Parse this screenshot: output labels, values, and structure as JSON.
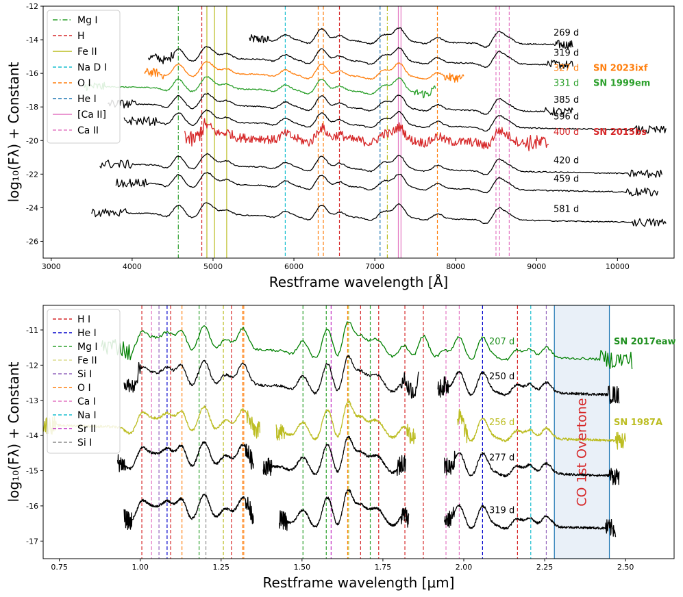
{
  "chart_data": [
    {
      "type": "line",
      "title": "",
      "xlabel": "Restframe wavelength [Å]",
      "ylabel": "log₁₀(Fλ) + Constant",
      "xlim": [
        2900,
        10700
      ],
      "ylim": [
        -27,
        -12
      ],
      "xticks": [
        3000,
        4000,
        5000,
        6000,
        7000,
        8000,
        9000,
        10000
      ],
      "yticks": [
        -26,
        -24,
        -22,
        -20,
        -18,
        -16,
        -14,
        -12
      ],
      "legend": {
        "position": "top-left",
        "entries": [
          {
            "label": "Mg I",
            "color": "#2ca02c",
            "style": "dashdot"
          },
          {
            "label": "H",
            "color": "#d62728",
            "style": "dashed"
          },
          {
            "label": "Fe II",
            "color": "#bcbd22",
            "style": "solid"
          },
          {
            "label": "Na D I",
            "color": "#17becf",
            "style": "dashed"
          },
          {
            "label": "O I",
            "color": "#ff7f0e",
            "style": "dashed"
          },
          {
            "label": "He I",
            "color": "#1f77b4",
            "style": "dashed"
          },
          {
            "label": "[Ca II]",
            "color": "#e377c2",
            "style": "solid"
          },
          {
            "label": "Ca II",
            "color": "#e377c2",
            "style": "dashed"
          }
        ]
      },
      "lines": [
        {
          "x": 4571,
          "color": "#2ca02c",
          "style": "dashdot"
        },
        {
          "x": 4861,
          "color": "#d62728",
          "style": "dashed"
        },
        {
          "x": 6563,
          "color": "#d62728",
          "style": "dashed"
        },
        {
          "x": 4924,
          "color": "#bcbd22",
          "style": "solid"
        },
        {
          "x": 5018,
          "color": "#bcbd22",
          "style": "solid"
        },
        {
          "x": 5169,
          "color": "#bcbd22",
          "style": "solid"
        },
        {
          "x": 7155,
          "color": "#bcbd22",
          "style": "dashdot"
        },
        {
          "x": 5893,
          "color": "#17becf",
          "style": "dashed"
        },
        {
          "x": 6300,
          "color": "#ff7f0e",
          "style": "dashed"
        },
        {
          "x": 6364,
          "color": "#ff7f0e",
          "style": "dashed"
        },
        {
          "x": 7774,
          "color": "#ff7f0e",
          "style": "dashed"
        },
        {
          "x": 7065,
          "color": "#1f77b4",
          "style": "dashed"
        },
        {
          "x": 7291,
          "color": "#e377c2",
          "style": "solid"
        },
        {
          "x": 7324,
          "color": "#e377c2",
          "style": "solid"
        },
        {
          "x": 8498,
          "color": "#e377c2",
          "style": "dashed"
        },
        {
          "x": 8542,
          "color": "#e377c2",
          "style": "dashed"
        },
        {
          "x": 8662,
          "color": "#e377c2",
          "style": "dashed"
        }
      ],
      "series": [
        {
          "epoch": "269 d",
          "name": "",
          "color": "#000000",
          "level": -14.0,
          "xstart": 5450,
          "xend": 9450
        },
        {
          "epoch": "319 d",
          "name": "",
          "color": "#000000",
          "level": -15.2,
          "xstart": 4200,
          "xend": 9450
        },
        {
          "epoch": "327 d",
          "name": "SN 2023ixf",
          "color": "#ff7f0e",
          "level": -16.1,
          "xstart": 4150,
          "xend": 8100
        },
        {
          "epoch": "331 d",
          "name": "SN 1999em",
          "color": "#2ca02c",
          "level": -17.0,
          "xstart": 3400,
          "xend": 7750
        },
        {
          "epoch": "385 d",
          "name": "",
          "color": "#000000",
          "level": -18.0,
          "xstart": 3700,
          "xend": 9450
        },
        {
          "epoch": "396 d",
          "name": "",
          "color": "#000000",
          "level": -19.0,
          "xstart": 3900,
          "xend": 10600
        },
        {
          "epoch": "400 d",
          "name": "SN 2015bs",
          "color": "#d62728",
          "level": -19.9,
          "xstart": 4650,
          "xend": 9150
        },
        {
          "epoch": "420 d",
          "name": "",
          "color": "#000000",
          "level": -21.6,
          "xstart": 3600,
          "xend": 10550
        },
        {
          "epoch": "459 d",
          "name": "",
          "color": "#000000",
          "level": -22.7,
          "xstart": 3800,
          "xend": 10500
        },
        {
          "epoch": "581 d",
          "name": "",
          "color": "#000000",
          "level": -24.5,
          "xstart": 3500,
          "xend": 10600
        }
      ]
    },
    {
      "type": "line",
      "title": "",
      "xlabel": "Restframe wavelength [μm]",
      "ylabel": "log₁₀(Fλ) + Constant",
      "xlim": [
        0.7,
        2.65
      ],
      "ylim": [
        -17.5,
        -10.3
      ],
      "xticks": [
        0.75,
        1.0,
        1.25,
        1.5,
        1.75,
        2.0,
        2.25,
        2.5
      ],
      "yticks": [
        -17,
        -16,
        -15,
        -14,
        -13,
        -12,
        -11
      ],
      "legend": {
        "position": "top-left",
        "entries": [
          {
            "label": "H I",
            "color": "#d62728",
            "style": "dashed"
          },
          {
            "label": "He I",
            "color": "#0000cc",
            "style": "dashed"
          },
          {
            "label": "Mg I",
            "color": "#2ca02c",
            "style": "dashed"
          },
          {
            "label": "Fe II",
            "color": "#dbdb8d",
            "style": "dashed"
          },
          {
            "label": "Si I",
            "color": "#9467bd",
            "style": "dashed"
          },
          {
            "label": "O I",
            "color": "#ff7f0e",
            "style": "dashed"
          },
          {
            "label": "Ca I",
            "color": "#e377c2",
            "style": "dashed"
          },
          {
            "label": "Na I",
            "color": "#17becf",
            "style": "dashed"
          },
          {
            "label": "Sr II",
            "color": "#c02cc0",
            "style": "dashed"
          },
          {
            "label": "Si I",
            "color": "#8c8c8c",
            "style": "dashed"
          }
        ]
      },
      "lines": [
        {
          "x": 1.005,
          "color": "#d62728"
        },
        {
          "x": 1.094,
          "color": "#d62728"
        },
        {
          "x": 1.282,
          "color": "#d62728"
        },
        {
          "x": 1.681,
          "color": "#d62728"
        },
        {
          "x": 1.737,
          "color": "#d62728"
        },
        {
          "x": 1.818,
          "color": "#d62728"
        },
        {
          "x": 1.875,
          "color": "#d62728"
        },
        {
          "x": 2.166,
          "color": "#d62728"
        },
        {
          "x": 1.083,
          "color": "#0000cc"
        },
        {
          "x": 2.058,
          "color": "#0000cc"
        },
        {
          "x": 1.182,
          "color": "#2ca02c"
        },
        {
          "x": 1.503,
          "color": "#2ca02c"
        },
        {
          "x": 1.575,
          "color": "#2ca02c"
        },
        {
          "x": 1.711,
          "color": "#2ca02c"
        },
        {
          "x": 1.257,
          "color": "#bcbd22"
        },
        {
          "x": 1.644,
          "color": "#bcbd22"
        },
        {
          "x": 1.058,
          "color": "#9467bd"
        },
        {
          "x": 2.255,
          "color": "#9467bd"
        },
        {
          "x": 1.129,
          "color": "#ff7f0e"
        },
        {
          "x": 1.316,
          "color": "#ff7f0e"
        },
        {
          "x": 1.32,
          "color": "#ff7f0e"
        },
        {
          "x": 1.641,
          "color": "#ff7f0e"
        },
        {
          "x": 1.035,
          "color": "#e377c2"
        },
        {
          "x": 1.945,
          "color": "#e377c2"
        },
        {
          "x": 1.986,
          "color": "#e377c2"
        },
        {
          "x": 2.207,
          "color": "#17becf"
        },
        {
          "x": 1.59,
          "color": "#c02cc0"
        },
        {
          "x": 1.203,
          "color": "#8c8c8c"
        }
      ],
      "shaded_region": {
        "x0": 2.28,
        "x1": 2.45,
        "label": "CO 1st Overtone"
      },
      "series": [
        {
          "epoch": "207 d",
          "name": "SN 2017eaw",
          "color": "#008000",
          "level": -11.6,
          "segments": [
            [
              0.88,
              2.52
            ]
          ]
        },
        {
          "epoch": "250 d",
          "name": "",
          "color": "#000000",
          "level": -12.6,
          "segments": [
            [
              0.95,
              1.86
            ],
            [
              1.92,
              2.48
            ]
          ]
        },
        {
          "epoch": "256 d",
          "name": "SN 1987A",
          "color": "#bcbd22",
          "level": -13.9,
          "segments": [
            [
              0.7,
              1.37
            ],
            [
              1.42,
              1.85
            ],
            [
              1.98,
              2.5
            ]
          ]
        },
        {
          "epoch": "277 d",
          "name": "",
          "color": "#000000",
          "level": -14.9,
          "segments": [
            [
              0.93,
              1.35
            ],
            [
              1.38,
              1.82
            ],
            [
              1.94,
              2.48
            ]
          ]
        },
        {
          "epoch": "319 d",
          "name": "",
          "color": "#000000",
          "level": -16.4,
          "segments": [
            [
              0.95,
              1.35
            ],
            [
              1.43,
              1.83
            ],
            [
              1.94,
              2.47
            ]
          ]
        }
      ]
    }
  ]
}
